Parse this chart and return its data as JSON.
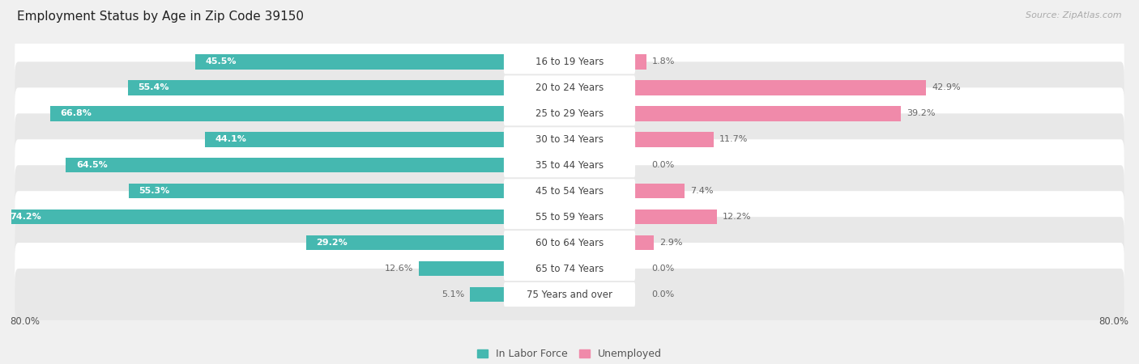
{
  "title": "Employment Status by Age in Zip Code 39150",
  "source": "Source: ZipAtlas.com",
  "categories": [
    "16 to 19 Years",
    "20 to 24 Years",
    "25 to 29 Years",
    "30 to 34 Years",
    "35 to 44 Years",
    "45 to 54 Years",
    "55 to 59 Years",
    "60 to 64 Years",
    "65 to 74 Years",
    "75 Years and over"
  ],
  "labor_force": [
    45.5,
    55.4,
    66.8,
    44.1,
    64.5,
    55.3,
    74.2,
    29.2,
    12.6,
    5.1
  ],
  "unemployed": [
    1.8,
    42.9,
    39.2,
    11.7,
    0.0,
    7.4,
    12.2,
    2.9,
    0.0,
    0.0
  ],
  "labor_color": "#45b8b0",
  "unemployed_color": "#f08aaa",
  "axis_max": 80.0,
  "bg_color": "#f0f0f0",
  "row_bg_even": "#ffffff",
  "row_bg_odd": "#e8e8e8",
  "title_fontsize": 11,
  "label_fontsize": 8.5,
  "value_fontsize": 8.0,
  "tick_fontsize": 8.5,
  "legend_fontsize": 9,
  "source_fontsize": 8
}
